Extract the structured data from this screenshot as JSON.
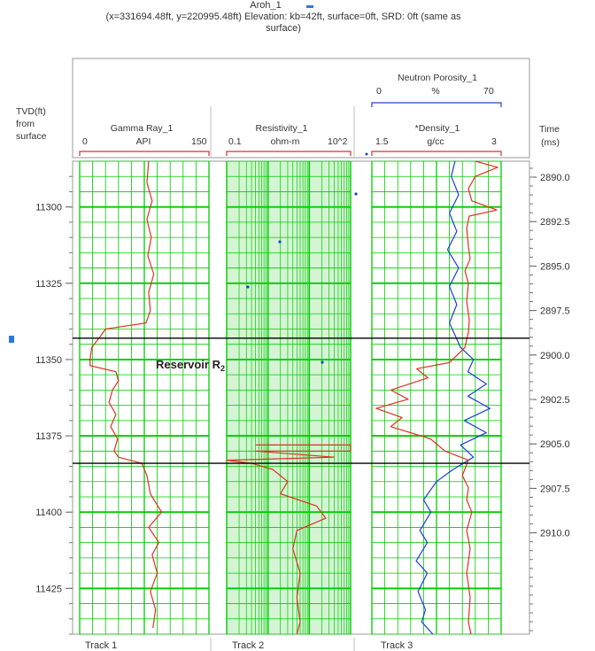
{
  "header": {
    "well_name": "Aroh_1",
    "info_line1": "(x=331694.48ft, y=220995.48ft) Elevation: kb=42ft, surface=0ft, SRD: 0ft (same as",
    "info_line2": "surface)"
  },
  "depth_axis": {
    "label_line1": "TVD(ft)",
    "label_line2": "from",
    "label_line3": "surface",
    "ticks": [
      "11300",
      "11325",
      "11350",
      "11375",
      "11400",
      "11425"
    ]
  },
  "time_axis": {
    "label_line1": "Time",
    "label_line2": "(ms)",
    "ticks": [
      "2890.0",
      "2892.5",
      "2895.0",
      "2897.5",
      "2900.0",
      "2902.5",
      "2905.0",
      "2907.5",
      "2910.0"
    ]
  },
  "tracks": {
    "track1": {
      "footer": "Track 1",
      "curve_name": "Gamma Ray_1",
      "unit": "API",
      "min": "0",
      "max": "150"
    },
    "track2": {
      "footer": "Track 2",
      "curve_name": "Resistivity_1",
      "unit": "ohm-m",
      "min": "0.1",
      "max": "10^2"
    },
    "track3": {
      "footer": "Track 3",
      "neutron": {
        "name": "Neutron Porosity_1",
        "unit": "%",
        "min": "0",
        "max": "70"
      },
      "density": {
        "name": "*Density_1",
        "unit": "g/cc",
        "min": "1.5",
        "max": "3"
      }
    }
  },
  "annotation": {
    "text": "Reservoir R",
    "subscript": "2"
  },
  "colors": {
    "grid": "#00cc00",
    "grid_fill": "#9fe79f",
    "red_curve": "#e03020",
    "blue_curve": "#1a3fd6",
    "boundary": "#000000",
    "header_red": "#d03030",
    "header_blue": "#2040d0"
  },
  "chart_data": {
    "type": "line",
    "x_label": "TVD(ft) from surface",
    "depth_range": [
      11285,
      11440
    ],
    "boundaries_tvd": [
      11343,
      11384
    ],
    "series": [
      {
        "name": "Gamma Ray_1",
        "unit": "API",
        "range": [
          0,
          150
        ],
        "points": [
          [
            11285,
            80
          ],
          [
            11292,
            78
          ],
          [
            11298,
            84
          ],
          [
            11304,
            78
          ],
          [
            11310,
            83
          ],
          [
            11316,
            79
          ],
          [
            11322,
            86
          ],
          [
            11328,
            80
          ],
          [
            11334,
            82
          ],
          [
            11338,
            77
          ],
          [
            11340,
            30
          ],
          [
            11342,
            25
          ],
          [
            11346,
            14
          ],
          [
            11350,
            12
          ],
          [
            11352,
            12
          ],
          [
            11354,
            42
          ],
          [
            11357,
            45
          ],
          [
            11360,
            38
          ],
          [
            11364,
            34
          ],
          [
            11368,
            42
          ],
          [
            11372,
            36
          ],
          [
            11376,
            44
          ],
          [
            11380,
            40
          ],
          [
            11382,
            45
          ],
          [
            11384,
            72
          ],
          [
            11388,
            78
          ],
          [
            11394,
            82
          ],
          [
            11400,
            95
          ],
          [
            11405,
            80
          ],
          [
            11410,
            92
          ],
          [
            11414,
            84
          ],
          [
            11420,
            90
          ],
          [
            11426,
            82
          ],
          [
            11432,
            88
          ],
          [
            11438,
            85
          ]
        ]
      },
      {
        "name": "Resistivity_1",
        "unit": "ohm-m",
        "range_log10": [
          -1,
          2
        ],
        "points": [
          [
            11384,
            0.4
          ],
          [
            11386,
            1.3
          ],
          [
            11390,
            3
          ],
          [
            11394,
            2
          ],
          [
            11398,
            15
          ],
          [
            11402,
            25
          ],
          [
            11406,
            5
          ],
          [
            11412,
            4
          ],
          [
            11420,
            6
          ],
          [
            11428,
            5
          ],
          [
            11436,
            6
          ],
          [
            11440,
            5
          ]
        ]
      },
      {
        "name": "Resistivity_1 (spikes)",
        "unit": "ohm-m",
        "range_log10": [
          -1,
          2
        ],
        "points": [
          [
            11378,
            0.5
          ],
          [
            11378,
            100
          ],
          [
            11380,
            100
          ],
          [
            11380,
            0.5
          ],
          [
            11382,
            40
          ],
          [
            11383,
            0.1
          ],
          [
            11384,
            0.4
          ]
        ]
      },
      {
        "name": "Neutron Porosity_1",
        "unit": "%",
        "range": [
          0,
          70
        ],
        "points": [
          [
            11285,
            45
          ],
          [
            11290,
            43
          ],
          [
            11296,
            47
          ],
          [
            11302,
            42
          ],
          [
            11308,
            46
          ],
          [
            11314,
            41
          ],
          [
            11320,
            47
          ],
          [
            11326,
            42
          ],
          [
            11332,
            46
          ],
          [
            11338,
            42
          ],
          [
            11342,
            45
          ],
          [
            11346,
            48
          ],
          [
            11350,
            55
          ],
          [
            11354,
            52
          ],
          [
            11358,
            62
          ],
          [
            11362,
            52
          ],
          [
            11366,
            64
          ],
          [
            11370,
            50
          ],
          [
            11374,
            62
          ],
          [
            11378,
            48
          ],
          [
            11382,
            55
          ],
          [
            11386,
            44
          ],
          [
            11390,
            35
          ],
          [
            11396,
            28
          ],
          [
            11400,
            32
          ],
          [
            11406,
            26
          ],
          [
            11410,
            30
          ],
          [
            11416,
            24
          ],
          [
            11420,
            30
          ],
          [
            11426,
            25
          ],
          [
            11432,
            29
          ],
          [
            11436,
            27
          ],
          [
            11440,
            33
          ]
        ]
      },
      {
        "name": "*Density_1",
        "unit": "g/cc",
        "range": [
          1.5,
          3
        ],
        "points": [
          [
            11285,
            2.7
          ],
          [
            11287,
            2.96
          ],
          [
            11290,
            2.7
          ],
          [
            11294,
            2.62
          ],
          [
            11298,
            2.66
          ],
          [
            11301,
            2.95
          ],
          [
            11303,
            2.63
          ],
          [
            11307,
            2.6
          ],
          [
            11313,
            2.62
          ],
          [
            11317,
            2.64
          ],
          [
            11321,
            2.58
          ],
          [
            11325,
            2.62
          ],
          [
            11331,
            2.6
          ],
          [
            11337,
            2.63
          ],
          [
            11341,
            2.62
          ],
          [
            11346,
            2.58
          ],
          [
            11351,
            2.4
          ],
          [
            11353,
            2.02
          ],
          [
            11356,
            2.15
          ],
          [
            11360,
            1.72
          ],
          [
            11363,
            1.92
          ],
          [
            11366,
            1.55
          ],
          [
            11369,
            1.85
          ],
          [
            11372,
            1.72
          ],
          [
            11376,
            2.18
          ],
          [
            11380,
            2.35
          ],
          [
            11383,
            2.62
          ],
          [
            11388,
            2.55
          ],
          [
            11392,
            2.62
          ],
          [
            11396,
            2.6
          ],
          [
            11400,
            2.66
          ],
          [
            11406,
            2.6
          ],
          [
            11412,
            2.64
          ],
          [
            11420,
            2.6
          ],
          [
            11428,
            2.64
          ],
          [
            11436,
            2.62
          ],
          [
            11440,
            2.65
          ]
        ]
      }
    ]
  }
}
